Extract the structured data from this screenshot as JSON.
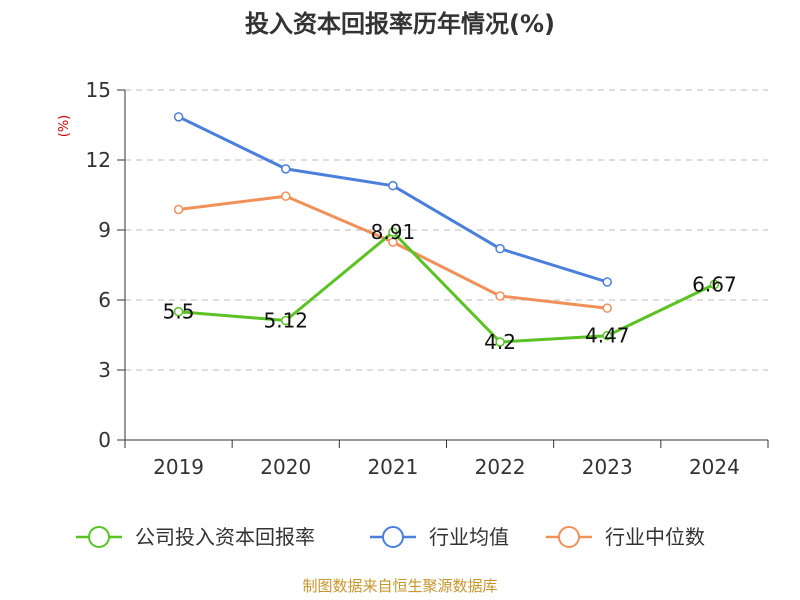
{
  "chart_data": {
    "type": "line",
    "title": "投入资本回报率历年情况(%)",
    "ylabel": "(%)",
    "xlabel": "",
    "categories": [
      "2019",
      "2020",
      "2021",
      "2022",
      "2023",
      "2024"
    ],
    "ylim": [
      0,
      15
    ],
    "yticks": [
      0,
      3,
      6,
      9,
      12,
      15
    ],
    "grid": true,
    "legend_position": "bottom",
    "series": [
      {
        "name": "公司投入资本回报率",
        "color": "#5bc224",
        "values": [
          5.5,
          5.12,
          8.91,
          4.2,
          4.47,
          6.67
        ],
        "labels": [
          "5.5",
          "5.12",
          "8.91",
          "4.2",
          "4.47",
          "6.67"
        ]
      },
      {
        "name": "行业均值",
        "color": "#4a7fdc",
        "values": [
          13.85,
          11.62,
          10.9,
          8.2,
          6.77,
          null
        ]
      },
      {
        "name": "行业中位数",
        "color": "#f0915a",
        "values": [
          9.88,
          10.45,
          8.48,
          6.17,
          5.65,
          null
        ]
      }
    ],
    "source": "制图数据来自恒生聚源数据库"
  }
}
